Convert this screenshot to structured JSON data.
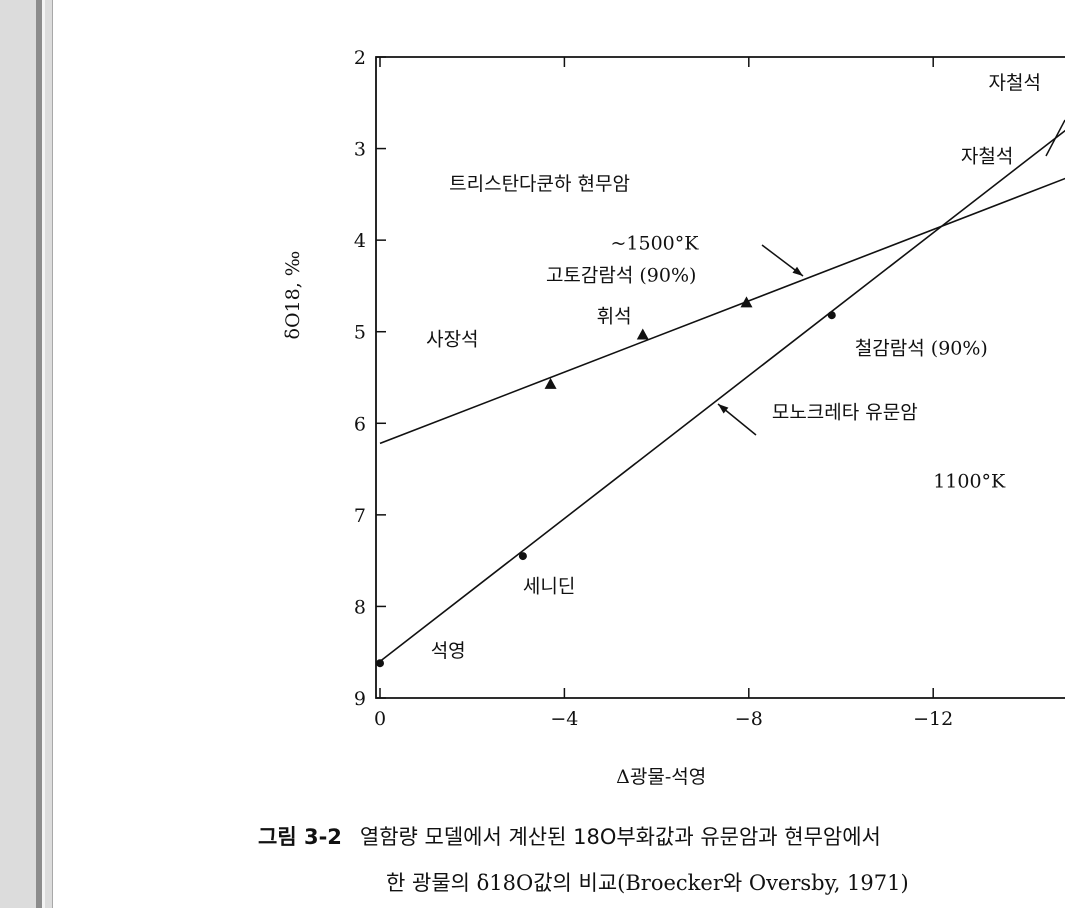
{
  "chart_data": {
    "type": "line",
    "xlabel": "Δ광물-석영",
    "ylabel": "δO18, ‰",
    "xlim": [
      0,
      -15
    ],
    "ylim": [
      2,
      9
    ],
    "y_inverted": true,
    "x_ticks": [
      "0",
      "−4",
      "−8",
      "−12"
    ],
    "x_tick_values": [
      0,
      -4,
      -8,
      -12
    ],
    "y_ticks": [
      "2",
      "3",
      "4",
      "5",
      "6",
      "7",
      "8",
      "9"
    ],
    "y_tick_values": [
      2,
      3,
      4,
      5,
      6,
      7,
      8,
      9
    ],
    "series": [
      {
        "line": [
          [
            0,
            6.22
          ],
          [
            -15,
            3.3
          ]
        ],
        "marker": "triangle",
        "points": [
          {
            "x": -3.7,
            "y": 5.57,
            "label": "사장석"
          },
          {
            "x": -5.7,
            "y": 5.03,
            "label": "휘석"
          },
          {
            "x": -7.95,
            "y": 4.68,
            "label": "고토감람석 (90%)"
          }
        ]
      },
      {
        "line": [
          [
            0,
            8.6
          ],
          [
            -15,
            2.75
          ]
        ],
        "marker": "circle",
        "points": [
          {
            "x": 0,
            "y": 8.62,
            "label": "석영"
          },
          {
            "x": -3.1,
            "y": 7.45,
            "label": "세니딘"
          },
          {
            "x": -9.8,
            "y": 4.82,
            "label": "철감람석 (90%)"
          }
        ]
      }
    ],
    "annotations": [
      {
        "text": "트리스탄다쿤하 현무암",
        "role": "region"
      },
      {
        "text": "~1500°K",
        "role": "temperature"
      },
      {
        "text": "모노크레타 유문암",
        "role": "region"
      },
      {
        "text": "1100°K",
        "role": "temperature"
      },
      {
        "text": "자철석",
        "role": "line-end"
      },
      {
        "text": "자철석",
        "role": "line-end"
      }
    ]
  },
  "caption": {
    "number": "그림 3-2",
    "line1": "열함량 모델에서 계산된 18O부화값과 유문암과 현무암에서",
    "line2": "한 광물의 δ18O값의 비교(Broecker와 Oversby, 1971)"
  },
  "colors": {
    "ink": "#111111",
    "page": "#ffffff",
    "frame": "#dcdcdc"
  }
}
